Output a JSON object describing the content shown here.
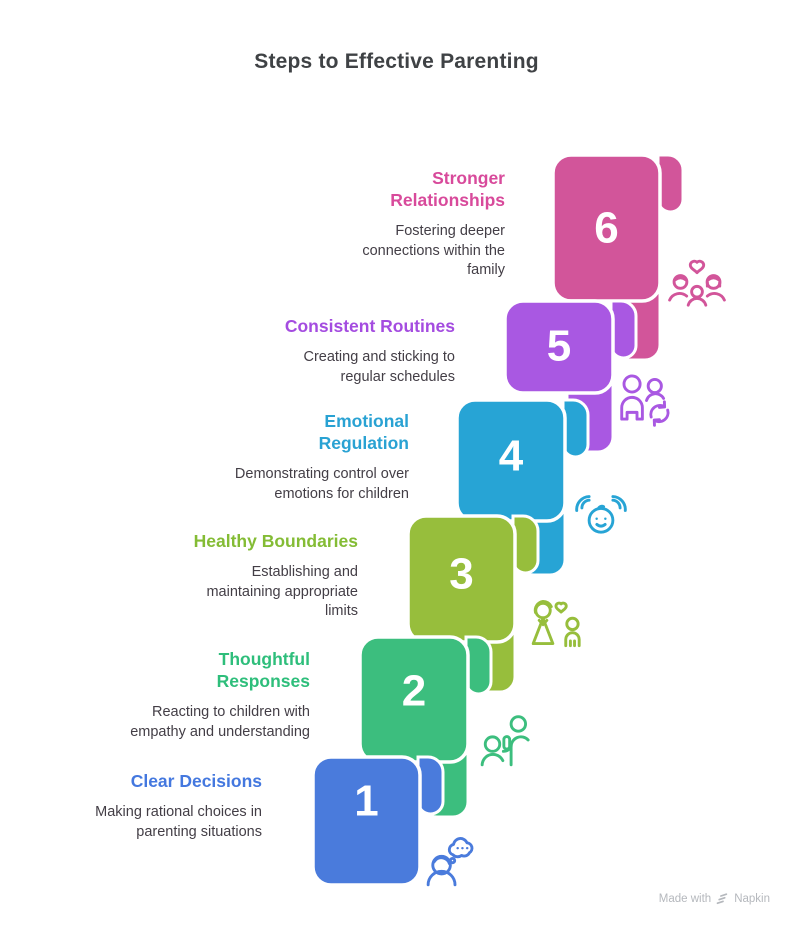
{
  "title": "Steps to Effective Parenting",
  "colors": {
    "heading": "#3F4245",
    "body_text": "#433E46",
    "number_text": "#FFFFFF",
    "footer_text": "#B5B8BD"
  },
  "steps": [
    {
      "num": "1",
      "title": "Clear Decisions",
      "desc": "Making rational choices in\nparenting situations",
      "color": "#4A7BDC",
      "title_color": "#4478DF",
      "icon": "person-thought-icon"
    },
    {
      "num": "2",
      "title": "Thoughtful\nResponses",
      "desc": "Reacting to children with\nempathy and understanding",
      "color": "#3CBE7E",
      "title_color": "#2EBE7B",
      "icon": "adult-child-icon"
    },
    {
      "num": "3",
      "title": "Healthy Boundaries",
      "desc": "Establishing and\nmaintaining appropriate\nlimits",
      "color": "#97BE3C",
      "title_color": "#84BC35",
      "icon": "mother-child-heart-icon"
    },
    {
      "num": "4",
      "title": "Emotional\nRegulation",
      "desc": "Demonstrating control over\nemotions for children",
      "color": "#27A4D5",
      "title_color": "#29A2D3",
      "icon": "child-face-hands-icon"
    },
    {
      "num": "5",
      "title": "Consistent Routines",
      "desc": "Creating and sticking to\nregular schedules",
      "color": "#A958E2",
      "title_color": "#A44CE0",
      "icon": "people-refresh-icon"
    },
    {
      "num": "6",
      "title": "Stronger\nRelationships",
      "desc": "Fostering deeper\nconnections within the\nfamily",
      "color": "#D2559A",
      "title_color": "#D84A9B",
      "icon": "family-heart-icon"
    }
  ],
  "footer": {
    "made_with": "Made with",
    "brand": "Napkin"
  }
}
